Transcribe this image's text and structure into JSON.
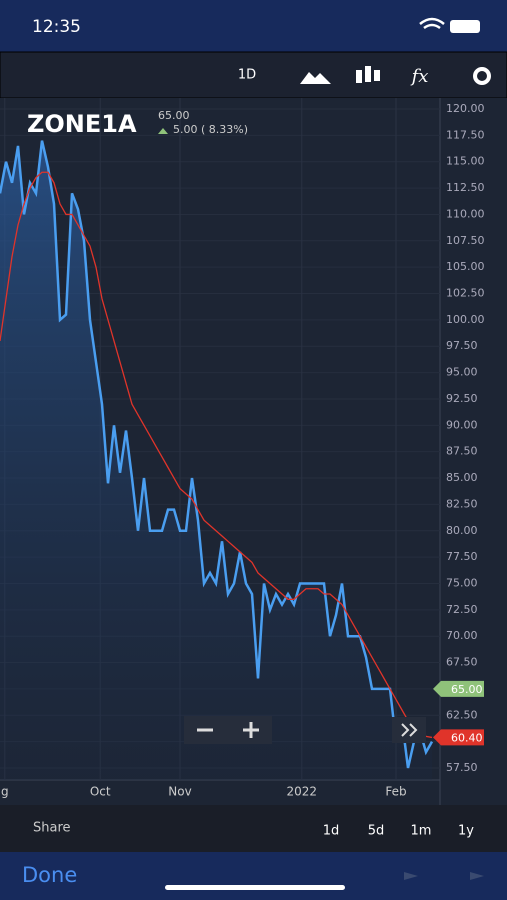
{
  "status_bar": {
    "time": "12:35"
  },
  "toolbar": {
    "interval": "1D"
  },
  "header": {
    "symbol": "ZONE1A",
    "price": "65.00",
    "change": "5.00 ( 8.33%)"
  },
  "chart_data": {
    "type": "line",
    "xlim": [
      0,
      72
    ],
    "xticks": [
      {
        "value": 0.8,
        "label": "g"
      },
      {
        "value": 16.7,
        "label": "Oct"
      },
      {
        "value": 30,
        "label": "Nov"
      },
      {
        "value": 50.3,
        "label": "2022"
      },
      {
        "value": 66,
        "label": "Feb"
      }
    ],
    "ylim": [
      57.5,
      120
    ],
    "yticks": [
      {
        "value": 57.5,
        "label": "57.50"
      },
      {
        "value": 60,
        "label": "60.00"
      },
      {
        "value": 62.5,
        "label": "62.50"
      },
      {
        "value": 65,
        "label": "65.00"
      },
      {
        "value": 67.5,
        "label": "67.50"
      },
      {
        "value": 70,
        "label": "70.00"
      },
      {
        "value": 72.5,
        "label": "72.50"
      },
      {
        "value": 75,
        "label": "75.00"
      },
      {
        "value": 77.5,
        "label": "77.50"
      },
      {
        "value": 80,
        "label": "80.00"
      },
      {
        "value": 82.5,
        "label": "82.50"
      },
      {
        "value": 85,
        "label": "85.00"
      },
      {
        "value": 87.5,
        "label": "87.50"
      },
      {
        "value": 90,
        "label": "90.00"
      },
      {
        "value": 92.5,
        "label": "92.50"
      },
      {
        "value": 95,
        "label": "95.00"
      },
      {
        "value": 97.5,
        "label": "97.50"
      },
      {
        "value": 100,
        "label": "100.00"
      },
      {
        "value": 102.5,
        "label": "102.50"
      },
      {
        "value": 105,
        "label": "105.00"
      },
      {
        "value": 107.5,
        "label": "107.50"
      },
      {
        "value": 110,
        "label": "110.00"
      },
      {
        "value": 112.5,
        "label": "112.50"
      },
      {
        "value": 115,
        "label": "115.00"
      },
      {
        "value": 117.5,
        "label": "117.50"
      },
      {
        "value": 120,
        "label": "120.00"
      }
    ],
    "grid": true,
    "series": [
      {
        "color": "#4a9ef0",
        "values": [
          112,
          115,
          113,
          116.5,
          110,
          113,
          112,
          117,
          114.5,
          111,
          100,
          100.5,
          112,
          110.5,
          107.5,
          100,
          96,
          92,
          84.5,
          90,
          85.5,
          89.5,
          85,
          80,
          85,
          80,
          80,
          80,
          82,
          82,
          80,
          80,
          85,
          81,
          75,
          76,
          75,
          79,
          74,
          75,
          78,
          75,
          74,
          66,
          75,
          72.5,
          74,
          73,
          74,
          73,
          75,
          75,
          75,
          75,
          75,
          70,
          72,
          75,
          70,
          70,
          70,
          68,
          65,
          65,
          65,
          65,
          60,
          62,
          57.5,
          60,
          61,
          59,
          60
        ]
      },
      {
        "color": "#e0342a",
        "values": [
          98,
          102,
          106,
          109,
          111,
          112.5,
          113.5,
          114,
          114,
          113,
          111,
          110,
          110,
          109,
          108,
          107,
          105,
          102,
          100,
          98,
          96,
          94,
          92,
          91,
          90,
          89,
          88,
          87,
          86,
          85,
          84,
          83.5,
          83,
          82,
          81,
          80.5,
          80,
          79.5,
          79,
          78.5,
          78,
          77.5,
          77,
          76,
          75.5,
          75,
          74.5,
          74,
          73.5,
          73.5,
          74,
          74.5,
          74.5,
          74.5,
          74,
          74,
          73.5,
          73,
          72,
          71,
          70,
          69,
          68,
          67,
          66,
          65,
          64,
          63,
          62,
          61.5,
          61,
          60.5,
          60.4
        ]
      }
    ],
    "price_tags": [
      {
        "value": 65,
        "label": "65.00",
        "color": "#8fc27a"
      },
      {
        "value": 60.4,
        "label": "60.40",
        "color": "#e0342a"
      }
    ]
  },
  "bottom_bar": {
    "share": "Share",
    "ranges": [
      "1d",
      "5d",
      "1m",
      "1y"
    ]
  },
  "nav": {
    "done": "Done"
  }
}
